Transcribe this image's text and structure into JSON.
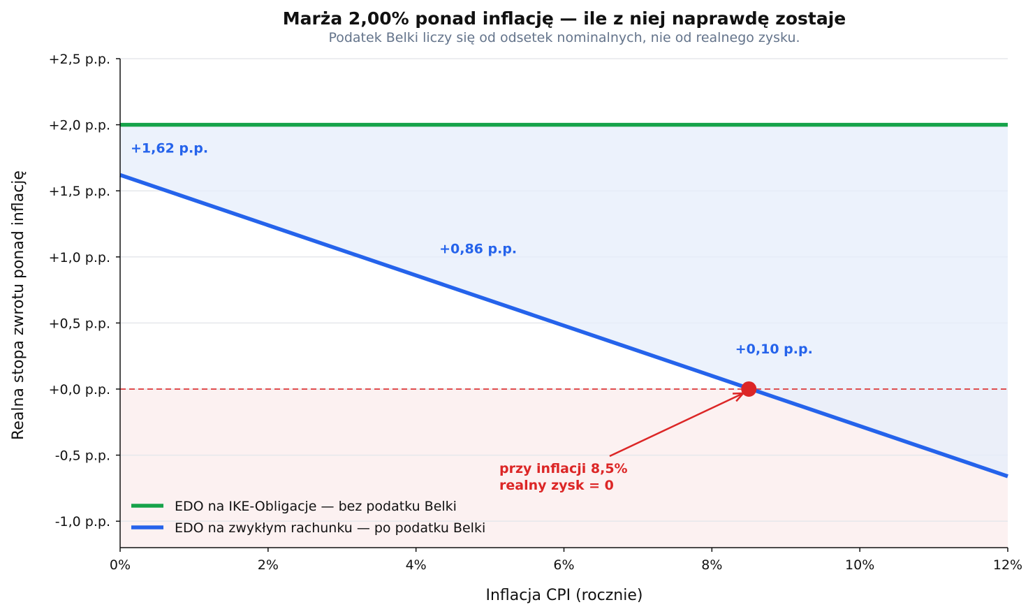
{
  "chart_data": {
    "type": "line",
    "title": "Marża 2,00% ponad inflację — ile z niej naprawdę zostaje",
    "subtitle": "Podatek Belki liczy się od odsetek nominalnych, nie od realnego zysku.",
    "xlabel": "Inflacja CPI (rocznie)",
    "ylabel": "Realna stopa zwrotu ponad inflację",
    "xlim": [
      0,
      12
    ],
    "ylim": [
      -1.2,
      2.5
    ],
    "x_ticks": [
      0,
      2,
      4,
      6,
      8,
      10,
      12
    ],
    "x_tick_labels": [
      "0%",
      "2%",
      "4%",
      "6%",
      "8%",
      "10%",
      "12%"
    ],
    "y_ticks": [
      2.5,
      2.0,
      1.5,
      1.0,
      0.5,
      0.0,
      -0.5,
      -1.0
    ],
    "y_tick_labels": [
      "+2,5 p.p.",
      "+2,0 p.p.",
      "+1,5 p.p.",
      "+1,0 p.p.",
      "+0,5 p.p.",
      "+0,0 p.p.",
      "-0,5 p.p.",
      "-1,0 p.p."
    ],
    "grid": "horizontal",
    "legend_position": "bottom-left",
    "series": [
      {
        "name": "EDO na IKE-Obligacje — bez podatku Belki",
        "color": "#16a34a",
        "x": [
          0,
          12
        ],
        "y": [
          2.0,
          2.0
        ]
      },
      {
        "name": "EDO na zwykłym rachunku — po podatku Belki",
        "color": "#2563eb",
        "x": [
          0,
          12
        ],
        "y": [
          1.62,
          -0.66
        ]
      }
    ],
    "data_labels": [
      {
        "x": 0,
        "y": 1.62,
        "text": "+1,62 p.p."
      },
      {
        "x": 4.84,
        "y": 0.86,
        "text": "+0,86 p.p."
      },
      {
        "x": 8.84,
        "y": 0.1,
        "text": "+0,10 p.p."
      }
    ],
    "zero_line": {
      "y": 0,
      "color": "#dc2626",
      "style": "dashed"
    },
    "breakeven": {
      "x": 8.5,
      "y": 0,
      "color": "#dc2626",
      "label_lines": [
        "przy inflacji 8,5%",
        "realny zysk = 0"
      ]
    },
    "colors": {
      "gap_fill": "#e6eefb",
      "negative_zone": "#fcf1f1"
    }
  }
}
